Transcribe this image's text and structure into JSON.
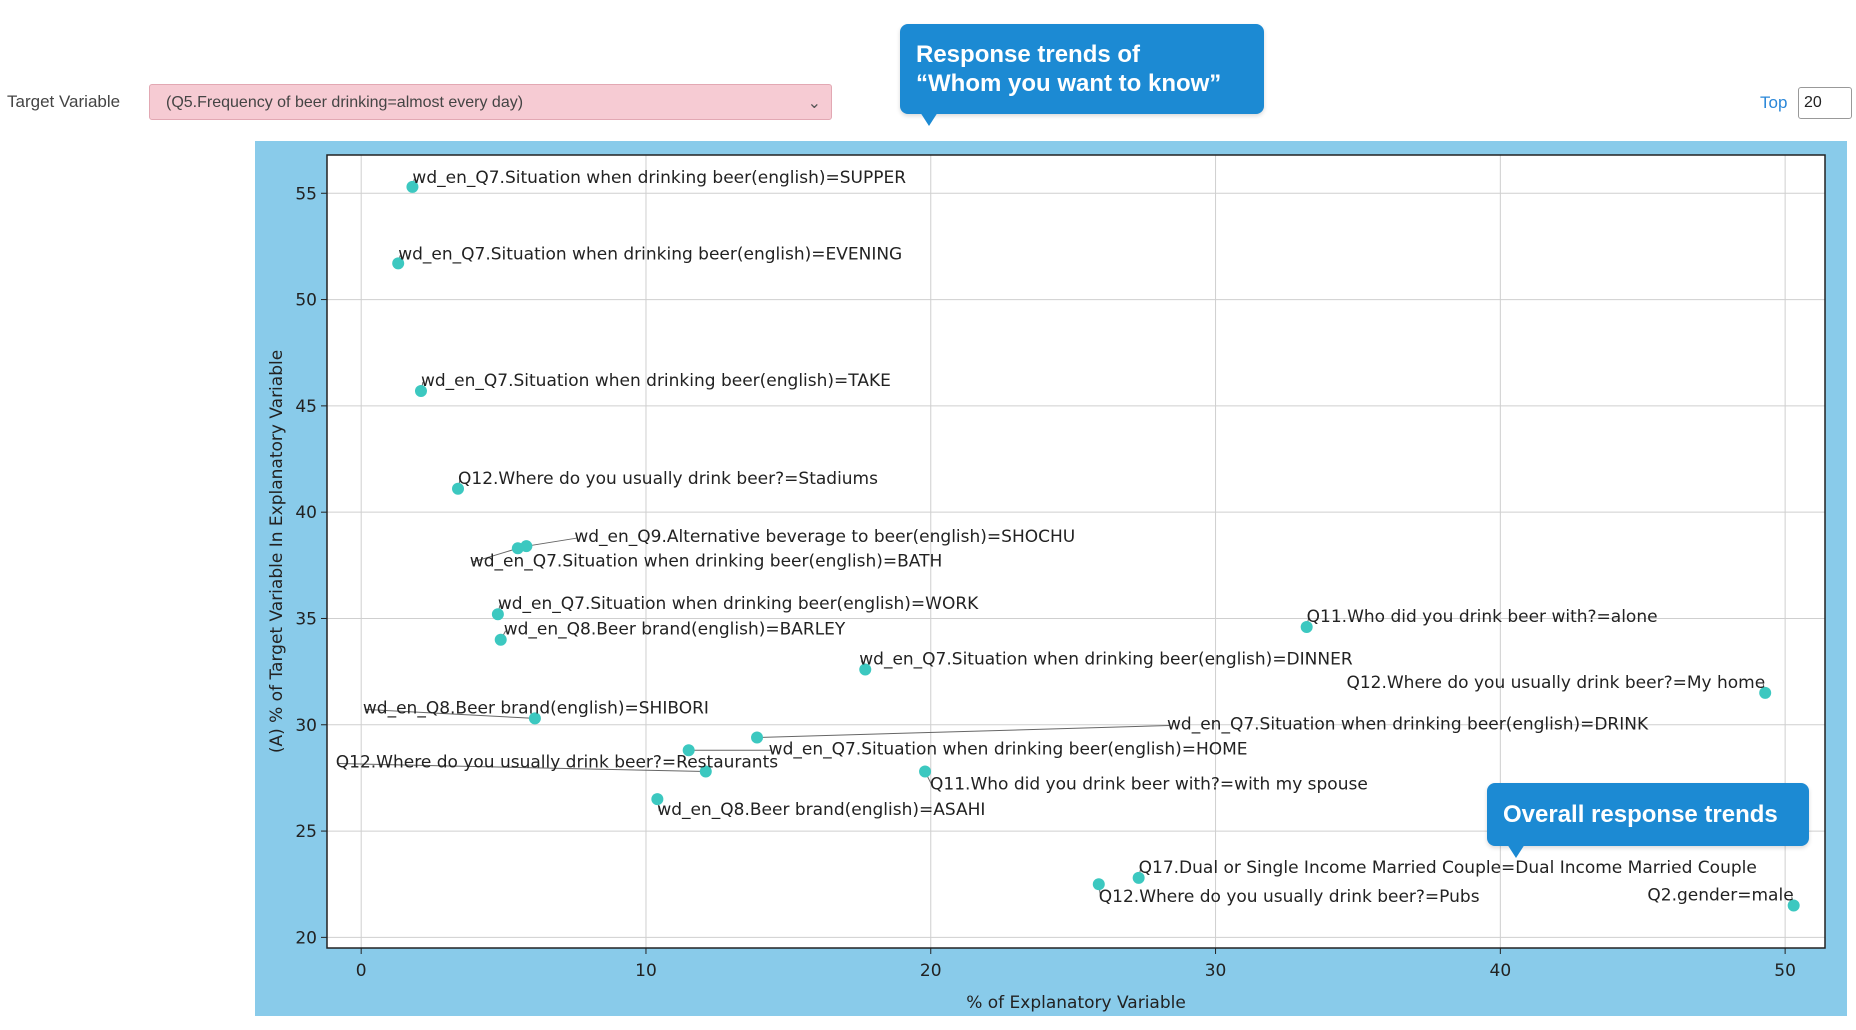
{
  "controls": {
    "target_label": "Target Variable",
    "target_value": "(Q5.Frequency of beer drinking=almost every day)",
    "top_label": "Top",
    "top_value": "20"
  },
  "callouts": {
    "response_line1": "Response trends of",
    "response_line2": "“Whom you want to know”",
    "overall": "Overall response trends"
  },
  "colors": {
    "panel_bg": "#89cbea",
    "point": "#3cc8c0",
    "callout": "#1c8ad3",
    "select_bg": "#f6cbd3"
  },
  "chart_data": {
    "type": "scatter",
    "xlabel": "% of Explanatory Variable",
    "ylabel": "(A) % of Target Variable In Explanatory Variable",
    "xlim": [
      -1.2,
      51.4
    ],
    "ylim": [
      19.5,
      56.8
    ],
    "xticks": [
      0,
      10,
      20,
      30,
      40,
      50
    ],
    "yticks": [
      20,
      25,
      30,
      35,
      40,
      45,
      50,
      55
    ],
    "grid": true,
    "points": [
      {
        "label": "wd_en_Q7.Situation when drinking beer(english)=SUPPER",
        "x": 1.8,
        "y": 55.3
      },
      {
        "label": "wd_en_Q7.Situation when drinking beer(english)=EVENING",
        "x": 1.3,
        "y": 51.7
      },
      {
        "label": "wd_en_Q7.Situation when drinking beer(english)=TAKE",
        "x": 2.1,
        "y": 45.7
      },
      {
        "label": "Q12.Where do you usually drink beer?=Stadiums",
        "x": 3.4,
        "y": 41.1
      },
      {
        "label": "wd_en_Q9.Alternative beverage to beer(english)=SHOCHU",
        "x": 5.8,
        "y": 38.4
      },
      {
        "label": "wd_en_Q7.Situation when drinking beer(english)=BATH",
        "x": 5.5,
        "y": 38.3
      },
      {
        "label": "wd_en_Q7.Situation when drinking beer(english)=WORK",
        "x": 4.8,
        "y": 35.2
      },
      {
        "label": "wd_en_Q8.Beer brand(english)=BARLEY",
        "x": 4.9,
        "y": 34.0
      },
      {
        "label": "Q11.Who did you drink beer with?=alone",
        "x": 33.2,
        "y": 34.6
      },
      {
        "label": "wd_en_Q7.Situation when drinking beer(english)=DINNER",
        "x": 17.7,
        "y": 32.6
      },
      {
        "label": "Q12.Where do you usually drink beer?=My home",
        "x": 49.3,
        "y": 31.5
      },
      {
        "label": "wd_en_Q8.Beer brand(english)=SHIBORI",
        "x": 6.1,
        "y": 30.3
      },
      {
        "label": "wd_en_Q7.Situation when drinking beer(english)=DRINK",
        "x": 13.9,
        "y": 29.4
      },
      {
        "label": "wd_en_Q7.Situation when drinking beer(english)=HOME",
        "x": 11.5,
        "y": 28.8
      },
      {
        "label": "Q12.Where do you usually drink beer?=Restaurants",
        "x": 12.1,
        "y": 27.8
      },
      {
        "label": "Q11.Who did you drink beer with?=with my spouse",
        "x": 19.8,
        "y": 27.8
      },
      {
        "label": "wd_en_Q8.Beer brand(english)=ASAHI",
        "x": 10.4,
        "y": 26.5
      },
      {
        "label": "Q17.Dual or Single Income Married Couple=Dual Income Married Couple",
        "x": 27.3,
        "y": 22.8
      },
      {
        "label": "Q12.Where do you usually drink beer?=Pubs",
        "x": 25.9,
        "y": 22.5
      },
      {
        "label": "Q2.gender=male",
        "x": 50.3,
        "y": 21.5
      }
    ]
  }
}
